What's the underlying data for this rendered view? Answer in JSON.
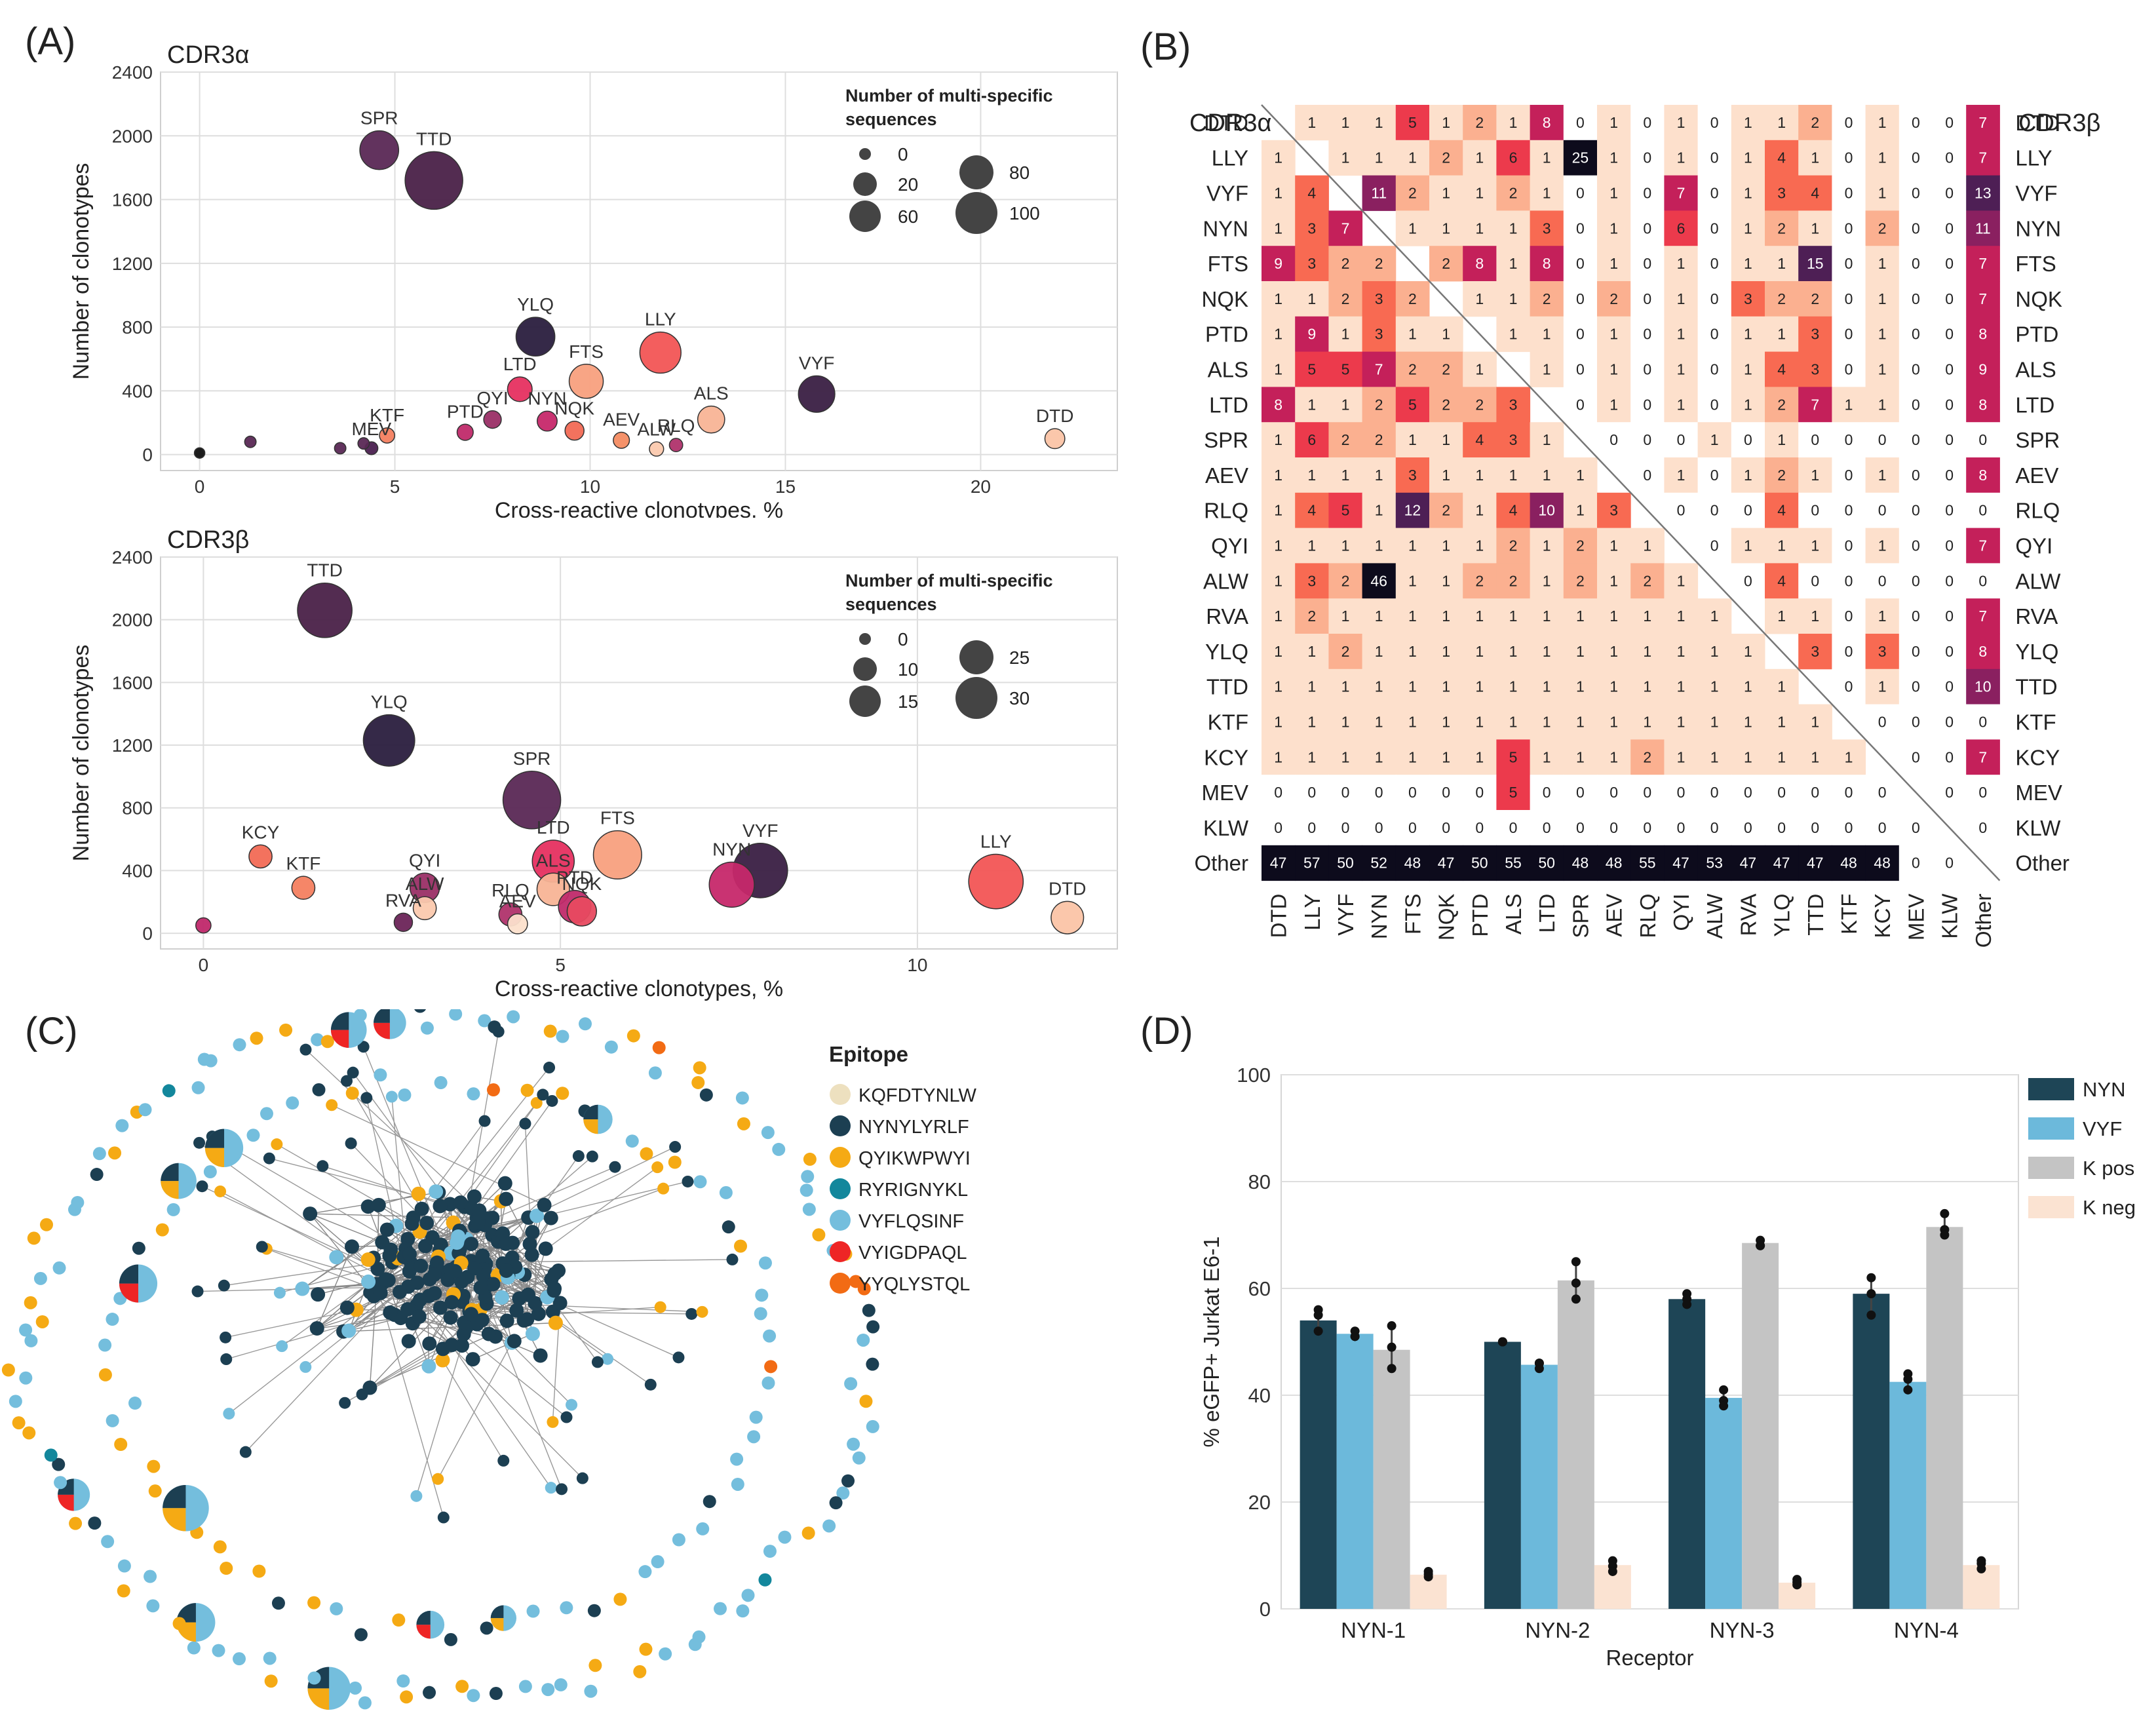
{
  "panels": {
    "a": "(A)",
    "b": "(B)",
    "c": "(C)",
    "d": "(D)"
  },
  "scatter_axes": {
    "xlabel": "Cross-reactive clonotypes, %",
    "ylabel": "Number of clonotypes",
    "legend_title_1": "Number of multi-specific",
    "legend_title_2": "sequences"
  },
  "heatmap_corner": {
    "left": "CDR3α",
    "right": "CDR3β"
  },
  "network": {
    "legend_title": "Epitope"
  },
  "chart_data": [
    {
      "type": "scatter",
      "panel": "A-top",
      "title": "CDR3α",
      "xlim": [
        -1,
        23.5
      ],
      "ylim": [
        -100,
        2400
      ],
      "xticks": [
        0,
        5,
        10,
        15,
        20
      ],
      "yticks": [
        0,
        400,
        800,
        1200,
        1600,
        2000,
        2400
      ],
      "size_legend": [
        "0",
        "20",
        "60",
        "80",
        "100"
      ],
      "points": [
        {
          "label": "SPR",
          "x": 4.6,
          "y": 1910,
          "size": 60,
          "color": "#5a2855"
        },
        {
          "label": "TTD",
          "x": 6.0,
          "y": 1720,
          "size": 100,
          "color": "#4a2148"
        },
        {
          "label": "YLQ",
          "x": 8.6,
          "y": 740,
          "size": 60,
          "color": "#2a1e3e"
        },
        {
          "label": "LLY",
          "x": 11.8,
          "y": 640,
          "size": 65,
          "color": "#f25555"
        },
        {
          "label": "FTS",
          "x": 9.9,
          "y": 460,
          "size": 50,
          "color": "#f8a07e"
        },
        {
          "label": "LTD",
          "x": 8.2,
          "y": 410,
          "size": 30,
          "color": "#e63060"
        },
        {
          "label": "VYF",
          "x": 15.8,
          "y": 380,
          "size": 55,
          "color": "#3a1f43"
        },
        {
          "label": "QYI",
          "x": 7.5,
          "y": 220,
          "size": 15,
          "color": "#9a2f66"
        },
        {
          "label": "ALS",
          "x": 13.1,
          "y": 220,
          "size": 35,
          "color": "#f8b496"
        },
        {
          "label": "NYN",
          "x": 8.9,
          "y": 210,
          "size": 20,
          "color": "#c6286a"
        },
        {
          "label": "NQK",
          "x": 9.6,
          "y": 150,
          "size": 18,
          "color": "#f26a55"
        },
        {
          "label": "PTD",
          "x": 6.8,
          "y": 140,
          "size": 12,
          "color": "#c02a6a"
        },
        {
          "label": "KTF",
          "x": 4.8,
          "y": 120,
          "size": 10,
          "color": "#f48060"
        },
        {
          "label": "AEV",
          "x": 10.8,
          "y": 90,
          "size": 12,
          "color": "#f48c62"
        },
        {
          "label": "DTD",
          "x": 21.9,
          "y": 100,
          "size": 20,
          "color": "#fbc4a6"
        },
        {
          "label": "RLQ",
          "x": 12.2,
          "y": 60,
          "size": 6,
          "color": "#b0336c"
        },
        {
          "label": "ALW",
          "x": 11.7,
          "y": 35,
          "size": 8,
          "color": "#fbc9ae"
        },
        {
          "label": "MEV",
          "x": 4.4,
          "y": 40,
          "size": 5,
          "color": "#4b2050"
        },
        {
          "label": "",
          "x": 0,
          "y": 10,
          "size": 0,
          "color": "#111111"
        },
        {
          "label": "",
          "x": 1.3,
          "y": 80,
          "size": 2,
          "color": "#5a2855"
        },
        {
          "label": "",
          "x": 3.6,
          "y": 40,
          "size": 2,
          "color": "#5a2855"
        },
        {
          "label": "",
          "x": 4.2,
          "y": 70,
          "size": 2,
          "color": "#5a2855"
        }
      ]
    },
    {
      "type": "scatter",
      "panel": "A-bottom",
      "title": "CDR3β",
      "xlim": [
        -0.6,
        12.8
      ],
      "ylim": [
        -100,
        2400
      ],
      "xticks": [
        0,
        5,
        10
      ],
      "yticks": [
        0,
        400,
        800,
        1200,
        1600,
        2000,
        2400
      ],
      "size_legend": [
        "0",
        "10",
        "15",
        "25",
        "30"
      ],
      "points": [
        {
          "label": "TTD",
          "x": 1.7,
          "y": 2060,
          "size": 28,
          "color": "#4a2148"
        },
        {
          "label": "YLQ",
          "x": 2.6,
          "y": 1230,
          "size": 26,
          "color": "#2a1e3e"
        },
        {
          "label": "SPR",
          "x": 4.6,
          "y": 850,
          "size": 30,
          "color": "#5a2855"
        },
        {
          "label": "KCY",
          "x": 0.8,
          "y": 490,
          "size": 8,
          "color": "#f26a55"
        },
        {
          "label": "FTS",
          "x": 5.8,
          "y": 500,
          "size": 24,
          "color": "#f8a07e"
        },
        {
          "label": "LTD",
          "x": 4.9,
          "y": 460,
          "size": 20,
          "color": "#e63060"
        },
        {
          "label": "VYF",
          "x": 7.8,
          "y": 400,
          "size": 28,
          "color": "#3a1f43"
        },
        {
          "label": "NYN",
          "x": 7.4,
          "y": 310,
          "size": 22,
          "color": "#c6286a"
        },
        {
          "label": "LLY",
          "x": 11.1,
          "y": 330,
          "size": 28,
          "color": "#f25555"
        },
        {
          "label": "KTF",
          "x": 1.4,
          "y": 290,
          "size": 8,
          "color": "#f48060"
        },
        {
          "label": "QYI",
          "x": 3.1,
          "y": 290,
          "size": 12,
          "color": "#9a2f66"
        },
        {
          "label": "ALS",
          "x": 4.9,
          "y": 280,
          "size": 14,
          "color": "#f8b496"
        },
        {
          "label": "PTD",
          "x": 5.2,
          "y": 170,
          "size": 14,
          "color": "#c02a6a"
        },
        {
          "label": "NQK",
          "x": 5.3,
          "y": 140,
          "size": 12,
          "color": "#e84a60"
        },
        {
          "label": "ALW",
          "x": 3.1,
          "y": 160,
          "size": 8,
          "color": "#fbc9ae"
        },
        {
          "label": "RLQ",
          "x": 4.3,
          "y": 120,
          "size": 8,
          "color": "#b0336c"
        },
        {
          "label": "RVA",
          "x": 2.8,
          "y": 70,
          "size": 5,
          "color": "#6b2458"
        },
        {
          "label": "AEV",
          "x": 4.4,
          "y": 60,
          "size": 6,
          "color": "#fce0cc"
        },
        {
          "label": "DTD",
          "x": 12.1,
          "y": 100,
          "size": 14,
          "color": "#fbc4a6"
        },
        {
          "label": "",
          "x": 0,
          "y": 50,
          "size": 3,
          "color": "#c0286a"
        }
      ]
    },
    {
      "type": "heatmap",
      "panel": "B",
      "row_labels_left": [
        "DTD",
        "LLY",
        "VYF",
        "NYN",
        "FTS",
        "NQK",
        "PTD",
        "ALS",
        "LTD",
        "SPR",
        "AEV",
        "RLQ",
        "QYI",
        "ALW",
        "RVA",
        "YLQ",
        "TTD",
        "KTF",
        "KCY",
        "MEV",
        "KLW",
        "Other"
      ],
      "row_labels_right": [
        "DTD",
        "LLY",
        "VYF",
        "NYN",
        "FTS",
        "NQK",
        "PTD",
        "ALS",
        "LTD",
        "SPR",
        "AEV",
        "RLQ",
        "QYI",
        "ALW",
        "RVA",
        "YLQ",
        "TTD",
        "KTF",
        "KCY",
        "MEV",
        "KLW",
        "Other"
      ],
      "col_labels": [
        "DTD",
        "LLY",
        "VYF",
        "NYN",
        "FTS",
        "NQK",
        "PTD",
        "ALS",
        "LTD",
        "SPR",
        "AEV",
        "RLQ",
        "QYI",
        "ALW",
        "RVA",
        "YLQ",
        "TTD",
        "KTF",
        "KCY",
        "MEV",
        "KLW",
        "Other"
      ],
      "values": [
        [
          null,
          1,
          1,
          1,
          5,
          1,
          2,
          1,
          8,
          0,
          1,
          0,
          1,
          0,
          1,
          1,
          2,
          0,
          1,
          0,
          0,
          7
        ],
        [
          1,
          null,
          1,
          1,
          1,
          2,
          1,
          6,
          1,
          25,
          1,
          0,
          1,
          0,
          1,
          4,
          1,
          0,
          1,
          0,
          0,
          7
        ],
        [
          1,
          4,
          null,
          11,
          2,
          1,
          1,
          2,
          1,
          0,
          1,
          0,
          7,
          0,
          1,
          3,
          4,
          0,
          1,
          0,
          0,
          13
        ],
        [
          1,
          3,
          7,
          null,
          1,
          1,
          1,
          1,
          3,
          0,
          1,
          0,
          6,
          0,
          1,
          2,
          1,
          0,
          2,
          0,
          0,
          11
        ],
        [
          9,
          3,
          2,
          2,
          null,
          2,
          8,
          1,
          8,
          0,
          1,
          0,
          1,
          0,
          1,
          1,
          15,
          0,
          1,
          0,
          0,
          7
        ],
        [
          1,
          1,
          2,
          3,
          2,
          null,
          1,
          1,
          2,
          0,
          2,
          0,
          1,
          0,
          3,
          2,
          2,
          0,
          1,
          0,
          0,
          7
        ],
        [
          1,
          9,
          1,
          3,
          1,
          1,
          null,
          1,
          1,
          0,
          1,
          0,
          1,
          0,
          1,
          1,
          3,
          0,
          1,
          0,
          0,
          8
        ],
        [
          1,
          5,
          5,
          7,
          2,
          2,
          1,
          null,
          1,
          0,
          1,
          0,
          1,
          0,
          1,
          4,
          3,
          0,
          1,
          0,
          0,
          9
        ],
        [
          8,
          1,
          1,
          2,
          5,
          2,
          2,
          3,
          null,
          0,
          1,
          0,
          1,
          0,
          1,
          2,
          7,
          1,
          1,
          0,
          0,
          8
        ],
        [
          1,
          6,
          2,
          2,
          1,
          1,
          4,
          3,
          1,
          null,
          0,
          0,
          0,
          1,
          0,
          1,
          0,
          0,
          0,
          0,
          0,
          0
        ],
        [
          1,
          1,
          1,
          1,
          3,
          1,
          1,
          1,
          1,
          1,
          null,
          0,
          1,
          0,
          1,
          2,
          1,
          0,
          1,
          0,
          0,
          8
        ],
        [
          1,
          4,
          5,
          1,
          12,
          2,
          1,
          4,
          10,
          1,
          3,
          null,
          0,
          0,
          0,
          4,
          0,
          0,
          0,
          0,
          0,
          0
        ],
        [
          1,
          1,
          1,
          1,
          1,
          1,
          1,
          2,
          1,
          2,
          1,
          1,
          null,
          0,
          1,
          1,
          1,
          0,
          1,
          0,
          0,
          7
        ],
        [
          1,
          3,
          2,
          46,
          1,
          1,
          2,
          2,
          1,
          2,
          1,
          2,
          1,
          null,
          0,
          4,
          0,
          0,
          0,
          0,
          0,
          0
        ],
        [
          1,
          2,
          1,
          1,
          1,
          1,
          1,
          1,
          1,
          1,
          1,
          1,
          1,
          1,
          null,
          1,
          1,
          0,
          1,
          0,
          0,
          7
        ],
        [
          1,
          1,
          2,
          1,
          1,
          1,
          1,
          1,
          1,
          1,
          1,
          1,
          1,
          1,
          1,
          null,
          3,
          0,
          3,
          0,
          0,
          8
        ],
        [
          1,
          1,
          1,
          1,
          1,
          1,
          1,
          1,
          1,
          1,
          1,
          1,
          1,
          1,
          1,
          1,
          null,
          0,
          1,
          0,
          0,
          10
        ],
        [
          1,
          1,
          1,
          1,
          1,
          1,
          1,
          1,
          1,
          1,
          1,
          1,
          1,
          1,
          1,
          1,
          1,
          null,
          0,
          0,
          0,
          0
        ],
        [
          1,
          1,
          1,
          1,
          1,
          1,
          1,
          5,
          1,
          1,
          1,
          2,
          1,
          1,
          1,
          1,
          1,
          1,
          null,
          0,
          0,
          7
        ],
        [
          0,
          0,
          0,
          0,
          0,
          0,
          0,
          5,
          0,
          0,
          0,
          0,
          0,
          0,
          0,
          0,
          0,
          0,
          0,
          null,
          0,
          0
        ],
        [
          0,
          0,
          0,
          0,
          0,
          0,
          0,
          0,
          0,
          0,
          0,
          0,
          0,
          0,
          0,
          0,
          0,
          0,
          0,
          0,
          null,
          0
        ],
        [
          47,
          57,
          50,
          52,
          48,
          47,
          50,
          55,
          50,
          48,
          48,
          55,
          47,
          53,
          47,
          47,
          47,
          48,
          48,
          0,
          0,
          null
        ]
      ]
    },
    {
      "type": "network",
      "panel": "C",
      "legend": [
        {
          "name": "KQFDTYNLW",
          "color": "#ede0bf"
        },
        {
          "name": "NYNYLYRLF",
          "color": "#1c3f52"
        },
        {
          "name": "QYIKWPWYI",
          "color": "#f5aa14"
        },
        {
          "name": "RYRIGNYKL",
          "color": "#13879c"
        },
        {
          "name": "VYFLQSINF",
          "color": "#74bedd"
        },
        {
          "name": "VYIGDPAQL",
          "color": "#ee2525"
        },
        {
          "name": "YYQLYSTQL",
          "color": "#f26b14"
        }
      ]
    },
    {
      "type": "bar",
      "panel": "D",
      "title": "",
      "xlabel": "Receptor",
      "ylabel": "% eGFP+ Jurkat E6-1",
      "ylim": [
        0,
        100
      ],
      "yticks": [
        0,
        20,
        40,
        60,
        80,
        100
      ],
      "categories": [
        "NYN-1",
        "NYN-2",
        "NYN-3",
        "NYN-4"
      ],
      "series": [
        {
          "name": "NYN",
          "color": "#1e4556",
          "values": [
            54,
            50,
            58,
            59
          ],
          "points": [
            [
              56,
              55,
              52
            ],
            [
              50,
              50,
              50
            ],
            [
              59,
              58,
              57
            ],
            [
              62,
              59,
              55
            ]
          ]
        },
        {
          "name": "VYF",
          "color": "#6cb9db",
          "values": [
            51.5,
            45.7,
            39.5,
            42.5
          ],
          "points": [
            [
              52,
              51,
              51
            ],
            [
              46,
              46,
              45
            ],
            [
              41,
              39,
              38
            ],
            [
              44,
              43,
              41
            ]
          ]
        },
        {
          "name": "K pos",
          "color": "#c4c4c4",
          "values": [
            48.5,
            61.5,
            68.5,
            71.5
          ],
          "points": [
            [
              53,
              49,
              45
            ],
            [
              65,
              61,
              58
            ],
            [
              69,
              68,
              68
            ],
            [
              74,
              71,
              70
            ]
          ]
        },
        {
          "name": "K neg",
          "color": "#fbe3d2",
          "values": [
            6.4,
            8.2,
            4.9,
            8.2
          ],
          "points": [
            [
              7,
              6.5,
              6
            ],
            [
              9,
              8,
              7
            ],
            [
              5.5,
              5,
              4.5
            ],
            [
              9,
              8.5,
              7.5
            ]
          ]
        }
      ]
    }
  ]
}
